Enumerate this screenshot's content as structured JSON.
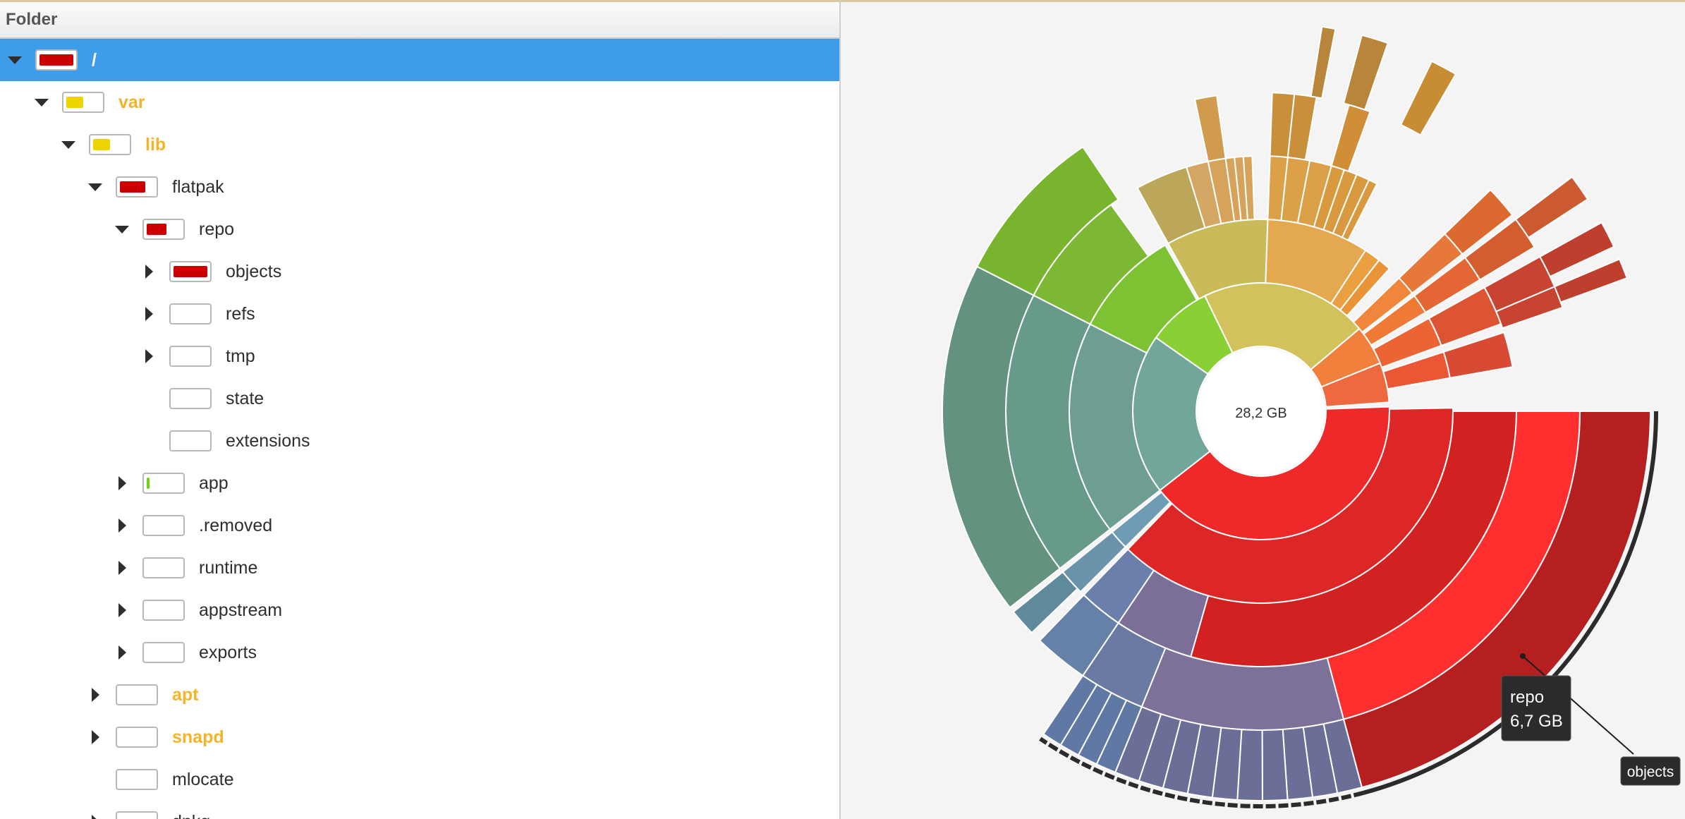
{
  "window": {
    "header_title": "Folder"
  },
  "tree": [
    {
      "name": "/",
      "level": 0,
      "expanded": true,
      "has_children": true,
      "usage": 1.0,
      "color": "#cc0000",
      "bold": true,
      "selected": true
    },
    {
      "name": "var",
      "level": 1,
      "expanded": true,
      "has_children": true,
      "usage": 0.5,
      "color": "#edd400",
      "bold": true
    },
    {
      "name": "lib",
      "level": 2,
      "expanded": true,
      "has_children": true,
      "usage": 0.5,
      "color": "#edd400",
      "bold": true
    },
    {
      "name": "flatpak",
      "level": 3,
      "expanded": true,
      "has_children": true,
      "usage": 0.75,
      "color": "#cc0000"
    },
    {
      "name": "repo",
      "level": 4,
      "expanded": true,
      "has_children": true,
      "usage": 0.58,
      "color": "#cc0000"
    },
    {
      "name": "objects",
      "level": 5,
      "expanded": false,
      "has_children": true,
      "usage": 1.0,
      "color": "#cc0000"
    },
    {
      "name": "refs",
      "level": 5,
      "expanded": false,
      "has_children": true,
      "usage": 0,
      "color": "#cc0000"
    },
    {
      "name": "tmp",
      "level": 5,
      "expanded": false,
      "has_children": true,
      "usage": 0,
      "color": "#cc0000"
    },
    {
      "name": "state",
      "level": 5,
      "expanded": false,
      "has_children": false,
      "usage": 0,
      "color": "#cc0000"
    },
    {
      "name": "extensions",
      "level": 5,
      "expanded": false,
      "has_children": false,
      "usage": 0,
      "color": "#cc0000"
    },
    {
      "name": "app",
      "level": 4,
      "expanded": false,
      "has_children": true,
      "usage": 0.06,
      "color": "#73d216"
    },
    {
      "name": ".removed",
      "level": 4,
      "expanded": false,
      "has_children": true,
      "usage": 0,
      "color": "#cc0000"
    },
    {
      "name": "runtime",
      "level": 4,
      "expanded": false,
      "has_children": true,
      "usage": 0,
      "color": "#cc0000"
    },
    {
      "name": "appstream",
      "level": 4,
      "expanded": false,
      "has_children": true,
      "usage": 0,
      "color": "#cc0000"
    },
    {
      "name": "exports",
      "level": 4,
      "expanded": false,
      "has_children": true,
      "usage": 0,
      "color": "#cc0000"
    },
    {
      "name": "apt",
      "level": 3,
      "expanded": false,
      "has_children": true,
      "usage": 0,
      "color": "#edd400",
      "bold": true
    },
    {
      "name": "snapd",
      "level": 3,
      "expanded": false,
      "has_children": true,
      "usage": 0,
      "color": "#edd400",
      "bold": true
    },
    {
      "name": "mlocate",
      "level": 3,
      "expanded": false,
      "has_children": false,
      "usage": 0,
      "color": "#cc0000"
    },
    {
      "name": "dpkg",
      "level": 3,
      "expanded": false,
      "has_children": true,
      "usage": 0,
      "color": "#cc0000"
    }
  ],
  "chart": {
    "center_label": "28,2 GB",
    "tooltip_name": "repo",
    "tooltip_size": "6,7 GB",
    "hover_label": "objects"
  }
}
